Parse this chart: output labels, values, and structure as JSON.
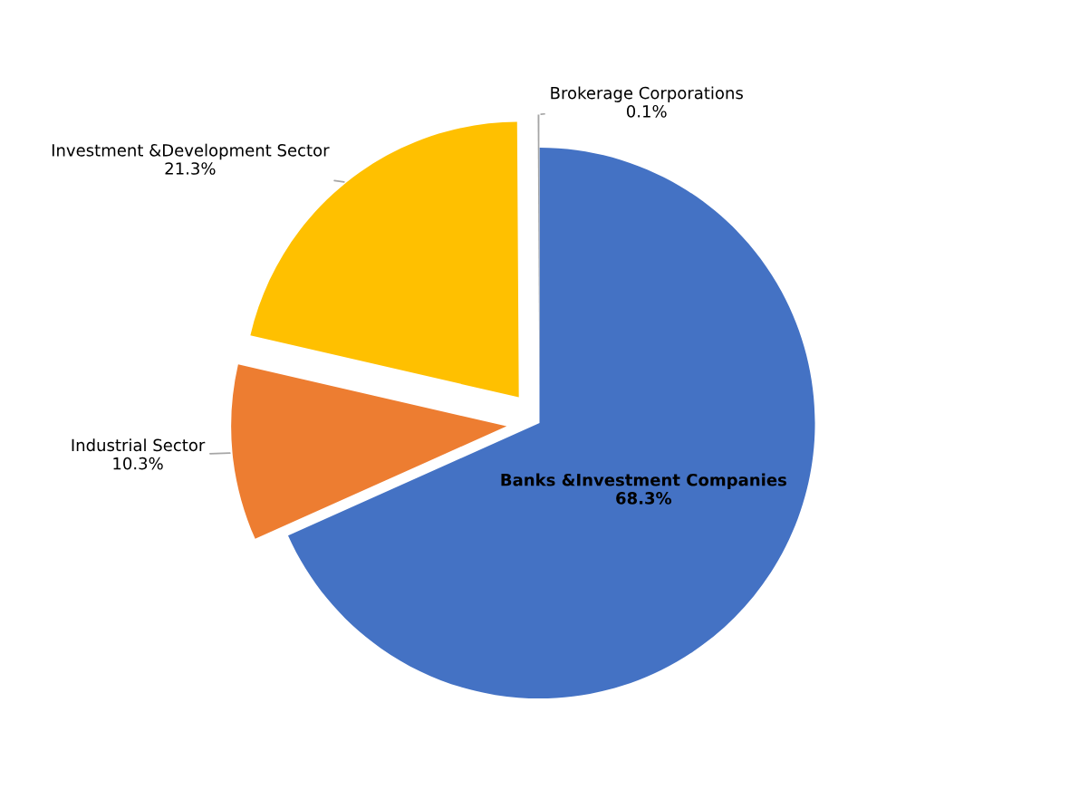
{
  "chart_data": {
    "type": "pie",
    "categories": [
      "Banks &Investment Companies",
      "Industrial Sector",
      "Investment &Development Sector",
      "Brokerage Corporations"
    ],
    "values": [
      68.3,
      10.3,
      21.3,
      0.1
    ],
    "value_labels": [
      "68.3%",
      "10.3%",
      "21.3%",
      "0.1%"
    ],
    "colors": [
      "#4472c4",
      "#ed7d31",
      "#ffc000",
      "#a5a5a5"
    ],
    "legend": false
  }
}
